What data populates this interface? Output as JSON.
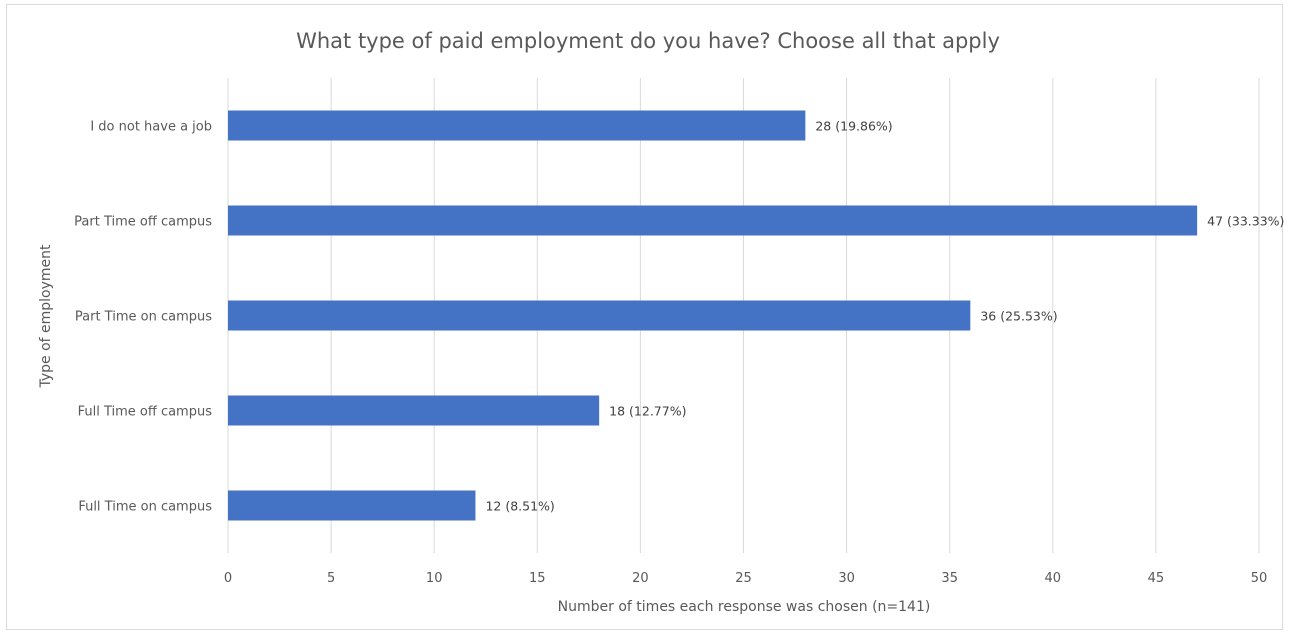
{
  "chart_data": {
    "type": "bar",
    "orientation": "horizontal",
    "title": "What type of paid employment do you have? Choose all that apply",
    "xlabel": "Number of times each response was chosen (n=141)",
    "ylabel": "Type of employment",
    "xlim": [
      0,
      50
    ],
    "x_ticks": [
      "0",
      "5",
      "10",
      "15",
      "20",
      "25",
      "30",
      "35",
      "40",
      "45",
      "50"
    ],
    "grid": "vertical",
    "legend": "none",
    "categories": [
      "I do not have a job",
      "Part Time off campus",
      "Part Time on campus",
      "Full Time off campus",
      "Full Time on campus"
    ],
    "values": [
      28,
      47,
      36,
      18,
      12
    ],
    "data_labels": [
      "28 (19.86%)",
      "47 (33.33%)",
      "36 (25.53%)",
      "18 (12.77%)",
      "12 (8.51%)"
    ],
    "bar_color": "#4472c4"
  }
}
